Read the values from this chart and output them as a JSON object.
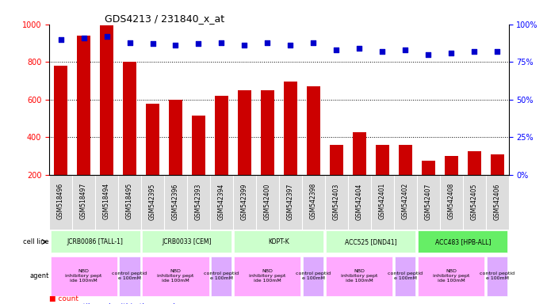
{
  "title": "GDS4213 / 231840_x_at",
  "samples": [
    "GSM518496",
    "GSM518497",
    "GSM518494",
    "GSM518495",
    "GSM542395",
    "GSM542396",
    "GSM542393",
    "GSM542394",
    "GSM542399",
    "GSM542400",
    "GSM542397",
    "GSM542398",
    "GSM542403",
    "GSM542404",
    "GSM542401",
    "GSM542402",
    "GSM542407",
    "GSM542408",
    "GSM542405",
    "GSM542406"
  ],
  "counts": [
    780,
    940,
    995,
    800,
    580,
    600,
    515,
    620,
    650,
    650,
    695,
    670,
    360,
    425,
    360,
    360,
    275,
    300,
    325,
    310
  ],
  "percentile": [
    90,
    91,
    92,
    88,
    87,
    86,
    87,
    88,
    86,
    88,
    86,
    88,
    83,
    84,
    82,
    83,
    80,
    81,
    82,
    82
  ],
  "cell_lines": [
    {
      "label": "JCRB0086 [TALL-1]",
      "start": 0,
      "end": 3,
      "color": "#ccffcc"
    },
    {
      "label": "JCRB0033 [CEM]",
      "start": 4,
      "end": 7,
      "color": "#ccffcc"
    },
    {
      "label": "KOPT-K",
      "start": 8,
      "end": 11,
      "color": "#ccffcc"
    },
    {
      "label": "ACC525 [DND41]",
      "start": 12,
      "end": 15,
      "color": "#ccffcc"
    },
    {
      "label": "ACC483 [HPB-ALL]",
      "start": 16,
      "end": 19,
      "color": "#66ee66"
    }
  ],
  "agents": [
    {
      "label": "NBD\ninhibitory pept\nide 100mM",
      "start": 0,
      "end": 2,
      "color": "#ffaaff"
    },
    {
      "label": "control peptid\ne 100mM",
      "start": 3,
      "end": 3,
      "color": "#ddaaff"
    },
    {
      "label": "NBD\ninhibitory pept\nide 100mM",
      "start": 4,
      "end": 6,
      "color": "#ffaaff"
    },
    {
      "label": "control peptid\ne 100mM",
      "start": 7,
      "end": 7,
      "color": "#ddaaff"
    },
    {
      "label": "NBD\ninhibitory pept\nide 100mM",
      "start": 8,
      "end": 10,
      "color": "#ffaaff"
    },
    {
      "label": "control peptid\ne 100mM",
      "start": 11,
      "end": 11,
      "color": "#ddaaff"
    },
    {
      "label": "NBD\ninhibitory pept\nide 100mM",
      "start": 12,
      "end": 14,
      "color": "#ffaaff"
    },
    {
      "label": "control peptid\ne 100mM",
      "start": 15,
      "end": 15,
      "color": "#ddaaff"
    },
    {
      "label": "NBD\ninhibitory pept\nide 100mM",
      "start": 16,
      "end": 18,
      "color": "#ffaaff"
    },
    {
      "label": "control peptid\ne 100mM",
      "start": 19,
      "end": 19,
      "color": "#ddaaff"
    }
  ],
  "bar_color": "#cc0000",
  "dot_color": "#0000cc",
  "ylim_left": [
    200,
    1000
  ],
  "ylim_right": [
    0,
    100
  ],
  "yticks_left": [
    200,
    400,
    600,
    800,
    1000
  ],
  "yticks_right": [
    0,
    25,
    50,
    75,
    100
  ],
  "bar_bottom": 200
}
